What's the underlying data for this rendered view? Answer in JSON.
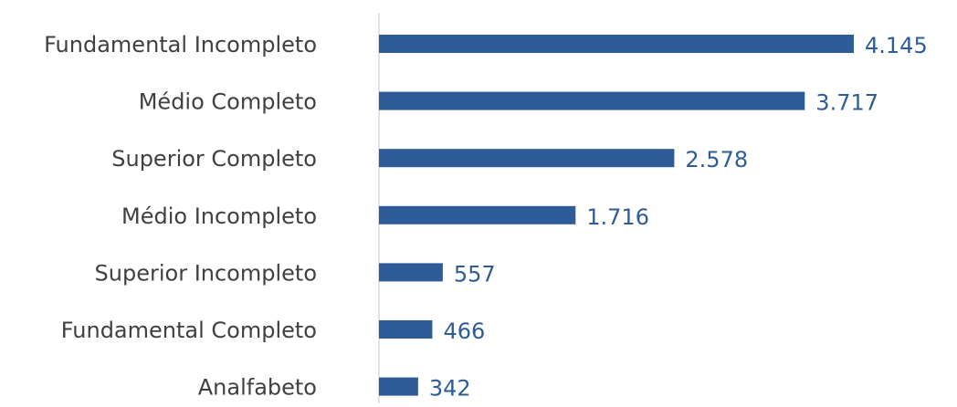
{
  "chart_data": {
    "type": "bar",
    "orientation": "horizontal",
    "categories": [
      "Fundamental Incompleto",
      "Médio Completo",
      "Superior Completo",
      "Médio Incompleto",
      "Superior Incompleto",
      "Fundamental Completo",
      "Analfabeto"
    ],
    "values": [
      4145,
      3717,
      2578,
      1716,
      557,
      466,
      342
    ],
    "value_labels": [
      "4.145",
      "3.717",
      "2.578",
      "1.716",
      "557",
      "466",
      "342"
    ],
    "color": "#2e5c99"
  }
}
